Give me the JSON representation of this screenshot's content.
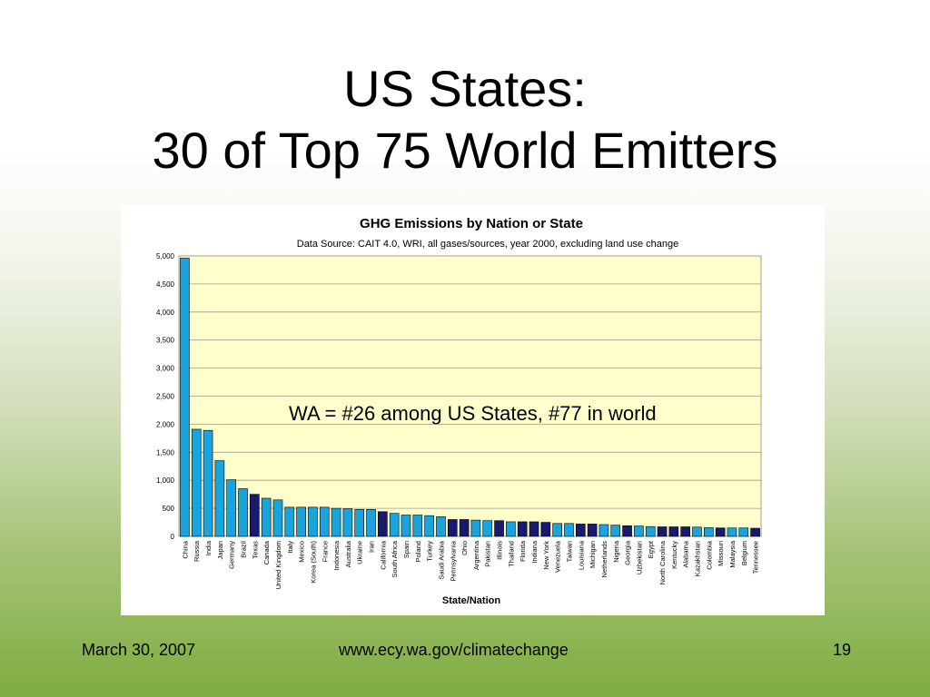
{
  "slide": {
    "title_line1": "US States:",
    "title_line2": "30 of Top 75 World Emitters",
    "annotation": "WA = #26 among US States, #77 in world",
    "footer_date": "March 30, 2007",
    "footer_url": "www.ecy.wa.gov/climatechange",
    "footer_page": "19"
  },
  "colors": {
    "nation": "#1aa3dc",
    "state": "#191970",
    "plot_background": "#ffffcc",
    "gridline": "#999999"
  },
  "chart_data": {
    "type": "bar",
    "title": "GHG Emissions by Nation or State",
    "subtitle": "Data Source: CAIT 4.0, WRI, all gases/sources, year 2000, excluding land use change",
    "xlabel": "State/Nation",
    "ylabel": "",
    "ylim": [
      0,
      5000
    ],
    "yticks": [
      "0",
      "500",
      "1,000",
      "1,500",
      "2,000",
      "2,500",
      "3,000",
      "3,500",
      "4,000",
      "4,500",
      "5,000"
    ],
    "grid": true,
    "categories": [
      "China",
      "Russia",
      "India",
      "Japan",
      "Germany",
      "Brazil",
      "Texas",
      "Canada",
      "United Kingdom",
      "Italy",
      "Mexico",
      "Korea (South)",
      "France",
      "Indonesia",
      "Australia",
      "Ukraine",
      "Iran",
      "California",
      "South Africa",
      "Spain",
      "Poland",
      "Turkey",
      "Saudi Arabia",
      "Pennsylvania",
      "Ohio",
      "Argentina",
      "Pakistan",
      "Illinois",
      "Thailand",
      "Florida",
      "Indiana",
      "New York",
      "Venezuela",
      "Taiwan",
      "Louisiana",
      "Michigan",
      "Netherlands",
      "Nigeria",
      "Georgia",
      "Uzbekistan",
      "Egypt",
      "North Carolina",
      "Kentucky",
      "Alabama",
      "Kazakhstan",
      "Colombia",
      "Missouri",
      "Malaysia",
      "Belgium",
      "Tennessee"
    ],
    "values": [
      4960,
      1910,
      1890,
      1350,
      1010,
      850,
      750,
      680,
      650,
      520,
      520,
      520,
      520,
      500,
      490,
      480,
      480,
      440,
      410,
      380,
      380,
      370,
      350,
      300,
      300,
      290,
      280,
      280,
      260,
      260,
      260,
      250,
      230,
      230,
      220,
      220,
      210,
      200,
      190,
      185,
      175,
      170,
      170,
      170,
      165,
      155,
      150,
      150,
      150,
      145
    ],
    "is_us_state": [
      false,
      false,
      false,
      false,
      false,
      false,
      true,
      false,
      false,
      false,
      false,
      false,
      false,
      false,
      false,
      false,
      false,
      true,
      false,
      false,
      false,
      false,
      false,
      true,
      true,
      false,
      false,
      true,
      false,
      true,
      true,
      true,
      false,
      false,
      true,
      true,
      false,
      false,
      true,
      false,
      false,
      true,
      true,
      true,
      false,
      false,
      true,
      false,
      false,
      true
    ]
  }
}
